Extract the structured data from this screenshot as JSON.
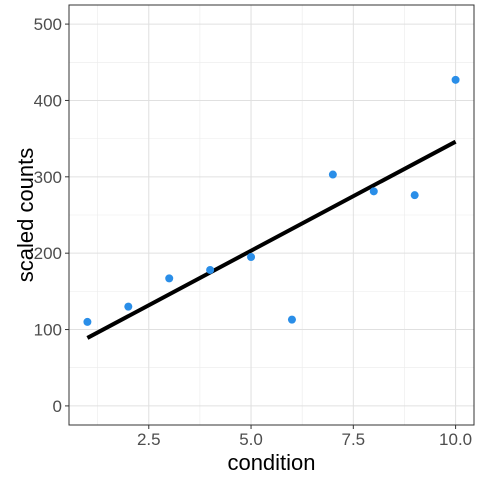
{
  "chart_data": {
    "type": "scatter",
    "xlabel": "condition",
    "ylabel": "scaled counts",
    "xlim": [
      0.55,
      10.45
    ],
    "ylim": [
      -25,
      525
    ],
    "x_ticks": [
      2.5,
      5.0,
      7.5,
      10.0
    ],
    "x_tick_labels": [
      "2.5",
      "5.0",
      "7.5",
      "10.0"
    ],
    "y_ticks": [
      0,
      100,
      200,
      300,
      400,
      500
    ],
    "y_tick_labels": [
      "0",
      "100",
      "200",
      "300",
      "400",
      "500"
    ],
    "grid": true,
    "legend": "none",
    "point_color": "#2a8ee8",
    "line_color": "#000000",
    "series": [
      {
        "type": "scatter",
        "points": [
          {
            "x": 1,
            "y": 110
          },
          {
            "x": 2,
            "y": 130
          },
          {
            "x": 3,
            "y": 167
          },
          {
            "x": 4,
            "y": 178
          },
          {
            "x": 5,
            "y": 195
          },
          {
            "x": 6,
            "y": 113
          },
          {
            "x": 7,
            "y": 303
          },
          {
            "x": 8,
            "y": 281
          },
          {
            "x": 9,
            "y": 276
          },
          {
            "x": 10,
            "y": 427
          }
        ]
      },
      {
        "type": "line",
        "points": [
          {
            "x": 1,
            "y": 89
          },
          {
            "x": 10,
            "y": 346
          }
        ]
      }
    ]
  }
}
